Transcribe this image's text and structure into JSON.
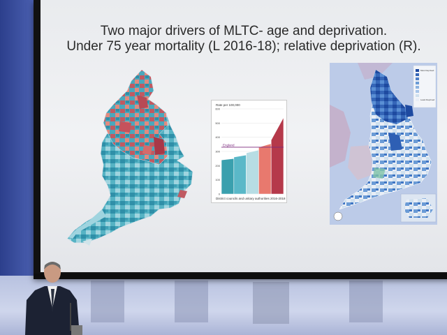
{
  "slide": {
    "title_line1": "Two major drivers of MLTC- age and deprivation.",
    "title_line2": "Under 75 year mortality (L 2016-18); relative deprivation (R)."
  },
  "chart_data": {
    "type": "bar",
    "ylabel": "Rate per 100,000",
    "xlabel": "District councils and unitary authorities 2016-2018",
    "ylim": [
      0,
      600
    ],
    "yticks": [
      0,
      100,
      200,
      300,
      400,
      500,
      600
    ],
    "reference_line": {
      "label": "England",
      "value": 330
    },
    "series": [
      {
        "quintile": 1,
        "values": [
          240,
          250
        ],
        "color": "#3aa0ae"
      },
      {
        "quintile": 2,
        "values": [
          260,
          275
        ],
        "color": "#5ab8c8"
      },
      {
        "quintile": 3,
        "values": [
          290,
          310
        ],
        "color": "#b7dde4"
      },
      {
        "quintile": 4,
        "values": [
          330,
          355
        ],
        "color": "#e8796e"
      },
      {
        "quintile": 5,
        "values": [
          380,
          540
        ],
        "color": "#b5394a"
      }
    ]
  },
  "right_map": {
    "legend_top": "Most Deprived",
    "legend_bottom": "Least Deprived"
  }
}
